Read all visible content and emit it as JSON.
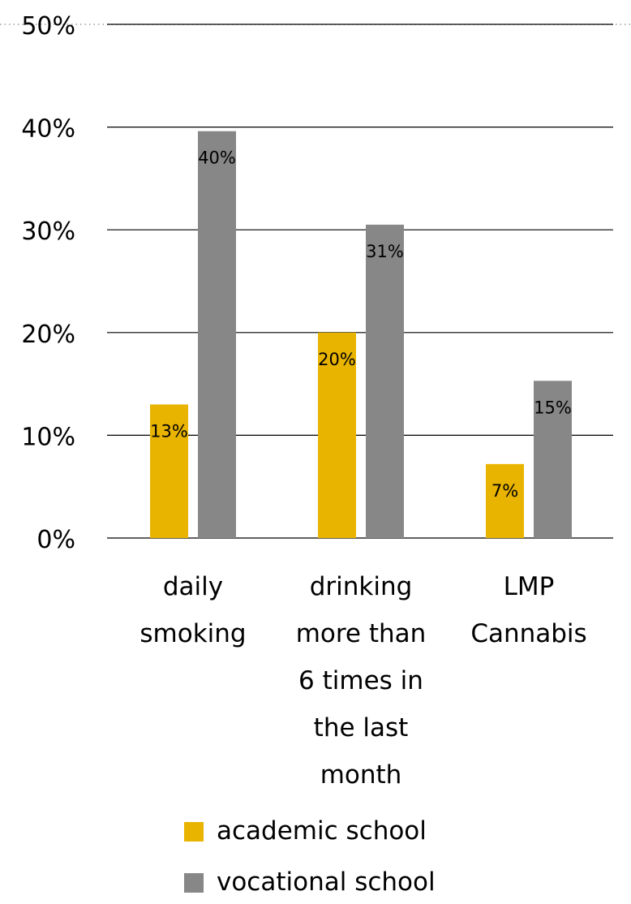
{
  "chart_data": {
    "type": "bar",
    "categories": [
      [
        "daily",
        "smoking"
      ],
      [
        "drinking",
        "more than",
        "6 times in",
        "the last",
        "month"
      ],
      [
        "LMP",
        "Cannabis"
      ]
    ],
    "series": [
      {
        "name": "academic school",
        "color": "#E8B400",
        "values": [
          13,
          20,
          7.2
        ],
        "labels": [
          "13%",
          "20%",
          "7%"
        ]
      },
      {
        "name": "vocational school",
        "color": "#878787",
        "values": [
          39.6,
          30.5,
          15.3
        ],
        "labels": [
          "40%",
          "31%",
          "15%"
        ]
      }
    ],
    "ylim": [
      0,
      50
    ],
    "yticks": [
      0,
      10,
      20,
      30,
      40,
      50
    ],
    "ytick_labels": [
      "0%",
      "10%",
      "20%",
      "30%",
      "40%",
      "50%"
    ],
    "grid": true,
    "legend_position": "bottom"
  }
}
